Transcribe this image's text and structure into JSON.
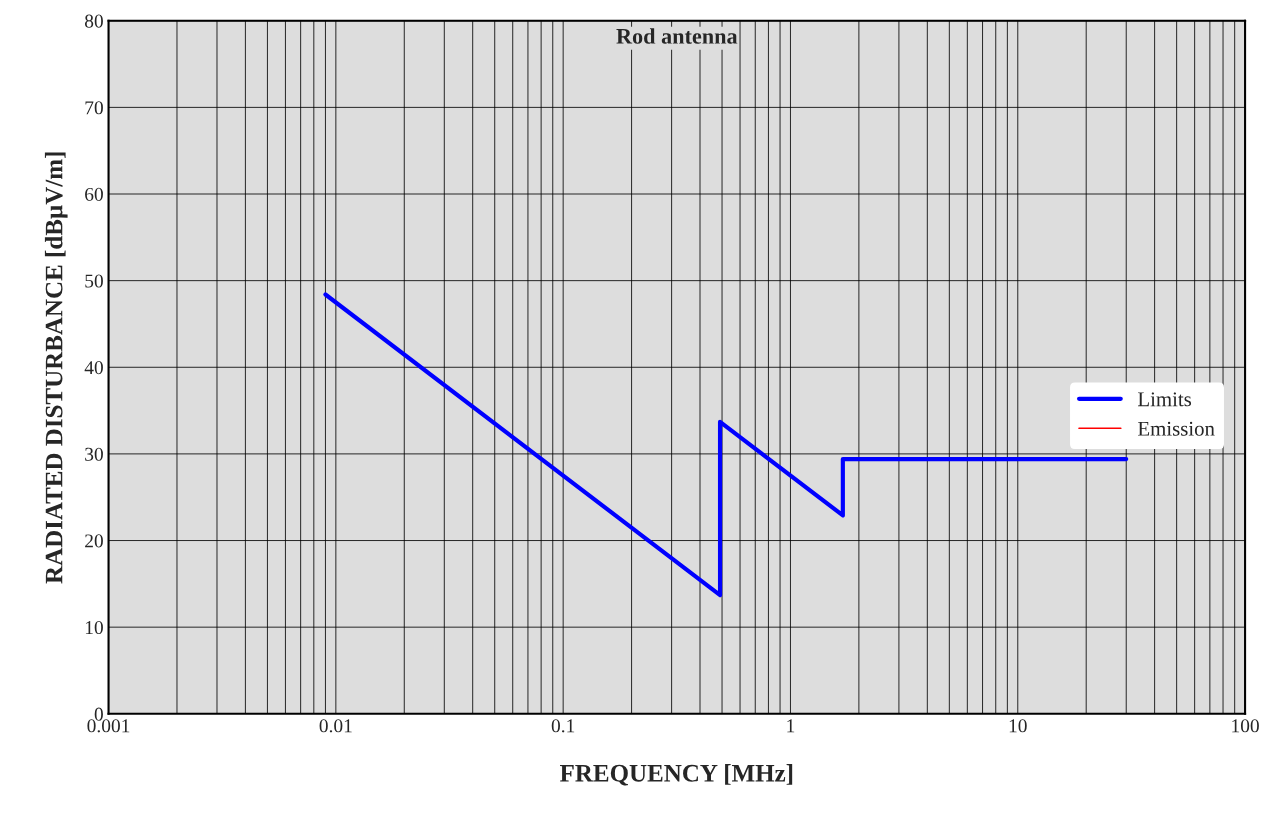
{
  "chart_data": {
    "type": "line",
    "title": "Rod antenna",
    "xlabel": "FREQUENCY [MHz]",
    "ylabel": "RADIATED DISTURBANCE [dBµV/m]",
    "series": [
      {
        "name": "Limits",
        "color": "#0000ff",
        "x": [
          0.009,
          0.49,
          0.49,
          1.7,
          1.7,
          30
        ],
        "values": [
          48.4,
          13.7,
          33.7,
          22.9,
          29.4,
          29.4
        ]
      },
      {
        "name": "Emission",
        "color": "#ff0000"
      }
    ],
    "log": "x",
    "xlim": [
      0.001,
      100
    ],
    "xticks": [
      0.001,
      0.01,
      0.1,
      1,
      10,
      100
    ],
    "ylim": [
      0,
      80
    ],
    "yticks": [
      0,
      10,
      20,
      30,
      40,
      50,
      60,
      70,
      80
    ],
    "grid": true,
    "legend": "right"
  }
}
